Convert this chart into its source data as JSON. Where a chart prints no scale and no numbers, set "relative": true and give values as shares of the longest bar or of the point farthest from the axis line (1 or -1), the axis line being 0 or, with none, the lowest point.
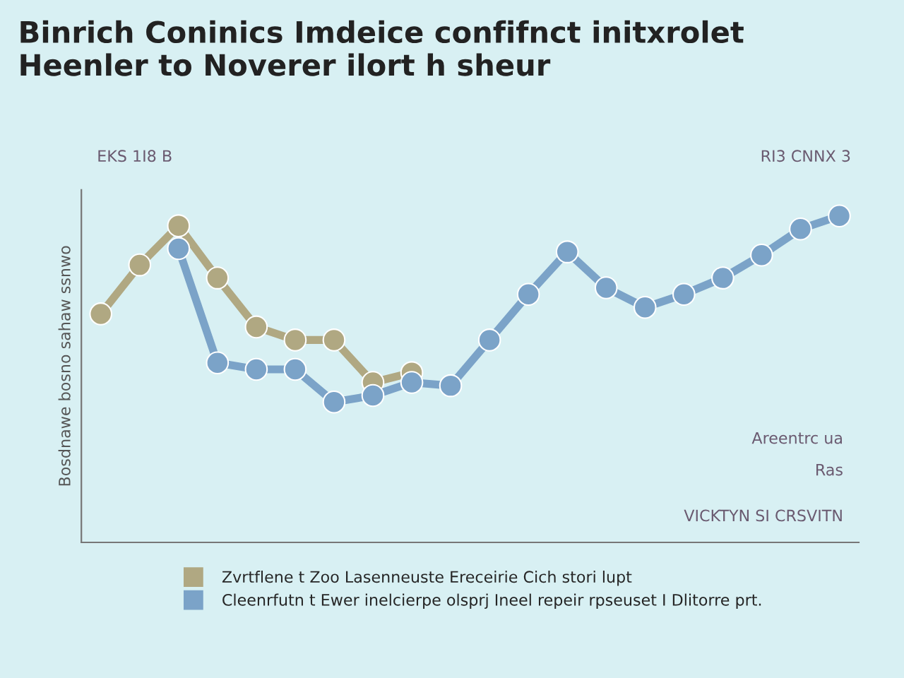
{
  "chart_data": {
    "type": "line",
    "relative": true,
    "title": "Binrich Coninics Imdeice confifnct initxrolet\nHeenler to Noverer ilort h sheur",
    "ylabel": "Bosdnawe bosno sahaw ssnwo",
    "categories": [
      null,
      null,
      null,
      null,
      null,
      null,
      null,
      null,
      null,
      null,
      null,
      null,
      null,
      null,
      null,
      null,
      null,
      null,
      null,
      null
    ],
    "series": [
      {
        "name": "Zvrtflene t Zoo Lasenneuste Ereceirie Cich stori lupt",
        "color": "#b0a882",
        "values": [
          0.7,
          0.85,
          0.97,
          0.81,
          0.66,
          0.62,
          0.62,
          0.49,
          0.52,
          null,
          null,
          null,
          null,
          null,
          null,
          null,
          null,
          null,
          null,
          null
        ]
      },
      {
        "name": "Cleenrfutn t Ewer inelcierpe olsprj Ineel repeir rpseuset I Dlitorre prt.",
        "color": "#7ba3c8",
        "values": [
          null,
          null,
          0.9,
          0.55,
          0.53,
          0.53,
          0.43,
          0.45,
          0.49,
          0.48,
          0.62,
          0.76,
          0.89,
          0.78,
          0.72,
          0.76,
          0.81,
          0.88,
          0.96,
          1.0
        ]
      }
    ],
    "marker": "circle",
    "legend": "bottom",
    "annotations": [
      "EKS 1I8 B",
      "RI3 CNNX 3",
      "Areentrc ua",
      "Ras",
      "VICKTYN SI CRSVITN"
    ]
  }
}
